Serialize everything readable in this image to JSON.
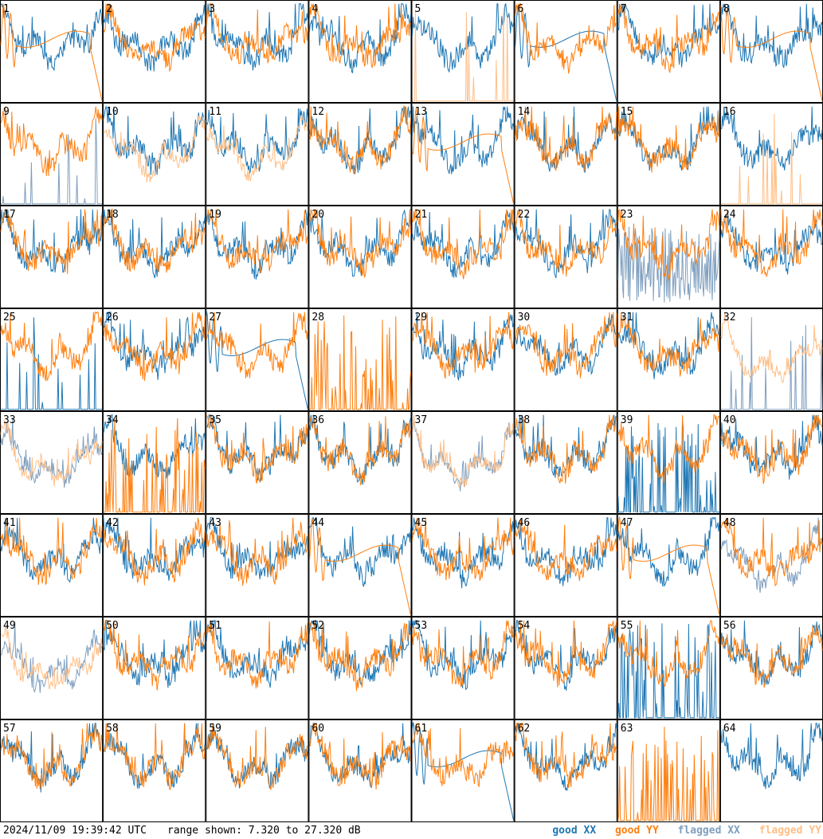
{
  "footer": {
    "timestamp": "2024/11/09 19:39:42 UTC",
    "range_text": "range shown: 7.320 to 27.320 dB"
  },
  "legend": {
    "good_xx": "good XX",
    "good_yy": "good YY",
    "flagged_xx": "flagged XX",
    "flagged_yy": "flagged YY"
  },
  "colors": {
    "good_xx": "#1f77b4",
    "good_yy": "#ff7f0e",
    "flagged_xx": "#7f9fbf",
    "flagged_yy": "#ffbf87",
    "grid": "#000000"
  },
  "chart_data": {
    "type": "line",
    "ylim": [
      7.32,
      27.32
    ],
    "grid": "8x8 small multiples",
    "panels": [
      {
        "id": 1,
        "xx": "good",
        "yy": "smooth"
      },
      {
        "id": 2,
        "xx": "good",
        "yy": "good"
      },
      {
        "id": 3,
        "xx": "good",
        "yy": "good"
      },
      {
        "id": 4,
        "xx": "good",
        "yy": "good"
      },
      {
        "id": 5,
        "xx": "good",
        "yy": "flagged-spikes"
      },
      {
        "id": 6,
        "xx": "smooth",
        "yy": "good"
      },
      {
        "id": 7,
        "xx": "good",
        "yy": "good"
      },
      {
        "id": 8,
        "xx": "good",
        "yy": "smooth"
      },
      {
        "id": 9,
        "xx": "flagged-spikes",
        "yy": "good"
      },
      {
        "id": 10,
        "xx": "good",
        "yy": "flagged"
      },
      {
        "id": 11,
        "xx": "good",
        "yy": "flagged"
      },
      {
        "id": 12,
        "xx": "good",
        "yy": "good"
      },
      {
        "id": 13,
        "xx": "good",
        "yy": "smooth"
      },
      {
        "id": 14,
        "xx": "good",
        "yy": "good"
      },
      {
        "id": 15,
        "xx": "good",
        "yy": "good"
      },
      {
        "id": 16,
        "xx": "good",
        "yy": "flagged-spikes"
      },
      {
        "id": 17,
        "xx": "good",
        "yy": "good"
      },
      {
        "id": 18,
        "xx": "good",
        "yy": "good"
      },
      {
        "id": 19,
        "xx": "good",
        "yy": "good"
      },
      {
        "id": 20,
        "xx": "good",
        "yy": "good"
      },
      {
        "id": 21,
        "xx": "good",
        "yy": "good"
      },
      {
        "id": 22,
        "xx": "good",
        "yy": "good"
      },
      {
        "id": 23,
        "xx": "flagged-noise",
        "yy": "good"
      },
      {
        "id": 24,
        "xx": "good",
        "yy": "good"
      },
      {
        "id": 25,
        "xx": "spike",
        "yy": "good"
      },
      {
        "id": 26,
        "xx": "good",
        "yy": "good"
      },
      {
        "id": 27,
        "xx": "smooth",
        "yy": "good"
      },
      {
        "id": 28,
        "xx": "none",
        "yy": "spikes"
      },
      {
        "id": 29,
        "xx": "good",
        "yy": "good"
      },
      {
        "id": 30,
        "xx": "good",
        "yy": "good"
      },
      {
        "id": 31,
        "xx": "good",
        "yy": "good"
      },
      {
        "id": 32,
        "xx": "flagged-spikes",
        "yy": "flagged"
      },
      {
        "id": 33,
        "xx": "flagged",
        "yy": "flagged"
      },
      {
        "id": 34,
        "xx": "good",
        "yy": "spikes"
      },
      {
        "id": 35,
        "xx": "good",
        "yy": "good"
      },
      {
        "id": 36,
        "xx": "good",
        "yy": "good"
      },
      {
        "id": 37,
        "xx": "flagged",
        "yy": "flagged"
      },
      {
        "id": 38,
        "xx": "good",
        "yy": "good"
      },
      {
        "id": 39,
        "xx": "spikes",
        "yy": "good"
      },
      {
        "id": 40,
        "xx": "good",
        "yy": "good"
      },
      {
        "id": 41,
        "xx": "good",
        "yy": "good"
      },
      {
        "id": 42,
        "xx": "good",
        "yy": "good"
      },
      {
        "id": 43,
        "xx": "good",
        "yy": "good"
      },
      {
        "id": 44,
        "xx": "good",
        "yy": "smooth"
      },
      {
        "id": 45,
        "xx": "good",
        "yy": "good"
      },
      {
        "id": 46,
        "xx": "good",
        "yy": "good"
      },
      {
        "id": 47,
        "xx": "good",
        "yy": "smooth"
      },
      {
        "id": 48,
        "xx": "flagged",
        "yy": "good"
      },
      {
        "id": 49,
        "xx": "flagged",
        "yy": "flagged"
      },
      {
        "id": 50,
        "xx": "good",
        "yy": "good"
      },
      {
        "id": 51,
        "xx": "good",
        "yy": "good"
      },
      {
        "id": 52,
        "xx": "good",
        "yy": "good"
      },
      {
        "id": 53,
        "xx": "good",
        "yy": "good"
      },
      {
        "id": 54,
        "xx": "good",
        "yy": "good"
      },
      {
        "id": 55,
        "xx": "spikes",
        "yy": "good"
      },
      {
        "id": 56,
        "xx": "good",
        "yy": "good"
      },
      {
        "id": 57,
        "xx": "good",
        "yy": "good"
      },
      {
        "id": 58,
        "xx": "good",
        "yy": "good"
      },
      {
        "id": 59,
        "xx": "good",
        "yy": "good"
      },
      {
        "id": 60,
        "xx": "good",
        "yy": "good"
      },
      {
        "id": 61,
        "xx": "smooth",
        "yy": "good"
      },
      {
        "id": 62,
        "xx": "good",
        "yy": "good"
      },
      {
        "id": 63,
        "xx": "none",
        "yy": "spikes"
      },
      {
        "id": 64,
        "xx": "good",
        "yy": "none"
      }
    ]
  }
}
